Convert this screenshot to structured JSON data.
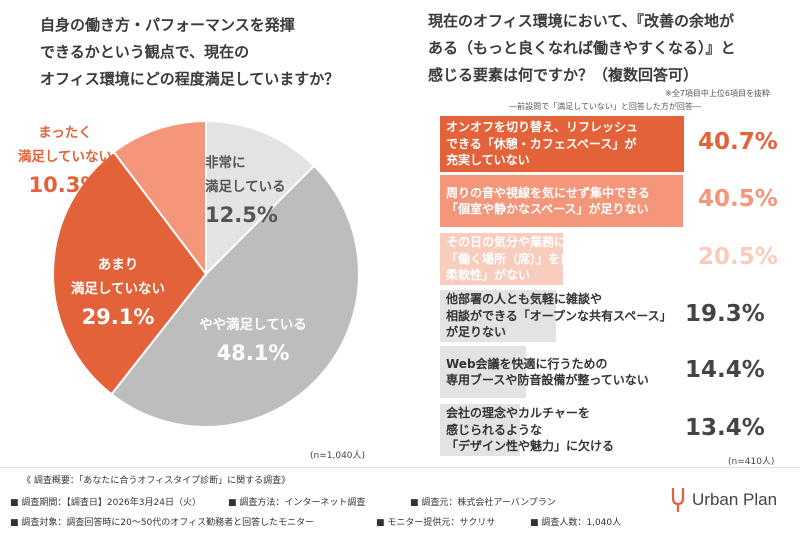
{
  "left_question": [
    "自身の働き方・パフォーマンスを発揮",
    "できるかという観点で、現在の",
    "オフィス環境にどの程度満足していますか？"
  ],
  "right_question": [
    "現在のオフィス環境において、『改善の余地が",
    "ある（もっと良くなれば働きやすくなる）』と",
    "感じる要素は何ですか？（複数回答可）"
  ],
  "right_note": "※全7項目中上位6項目を抜粋",
  "right_subtitle": "―前設問で「満足していない」と回答した方が回答―",
  "left_n": "(n=1,040人)",
  "right_n": "(n=410人)",
  "colors": {
    "dark_orange": "#e4623a",
    "mid_orange": "#f3967a",
    "light_orange": "#f8cdbd",
    "gray": "#bdbdbd",
    "light_gray": "#e3e3e3"
  },
  "chart_data": [
    {
      "type": "pie",
      "slices": [
        {
          "label": "非常に満足している",
          "value": 12.5,
          "display": "12.5%"
        },
        {
          "label": "やや満足している",
          "value": 48.1,
          "display": "48.1%"
        },
        {
          "label": "あまり満足していない",
          "value": 29.1,
          "display": "29.1%"
        },
        {
          "label": "まったく満足していない",
          "value": 10.3,
          "display": "10.3%"
        }
      ]
    },
    {
      "type": "bar",
      "orientation": "horizontal",
      "categories": [
        "オンオフを切り替え、リフレッシュできる「休憩・カフェスペース」が充実していない",
        "周りの音や視線を気にせず集中できる「個室や静かなスペース」が足りない",
        "その日の気分や業務に合わせて「働く場所（席）」を自由に選べる柔軟性」がない",
        "他部署の人とも気軽に雑談や相談ができる「オープンな共有スペース」が足りない",
        "Web会議を快適に行うための専用ブースや防音設備が整っていない",
        "会社の理念やカルチャーを感じられるような「デザイン性や魅力」に欠ける"
      ],
      "values": [
        40.7,
        40.5,
        20.5,
        19.3,
        14.4,
        13.4
      ],
      "display_values": [
        "40.7%",
        "40.5%",
        "20.5%",
        "19.3%",
        "14.4%",
        "13.4%"
      ]
    }
  ],
  "bar_labels": [
    [
      "オンオフを切り替え、リフレッシュ",
      "できる「休憩・カフェスペース」が",
      "充実していない"
    ],
    [
      "周りの音や視線を気にせず集中できる",
      "「個室や静かなスペース」が足りない"
    ],
    [
      "その日の気分や業務に合わせて",
      "「働く場所（席）」を自由に選べる",
      "柔軟性」がない"
    ],
    [
      "他部署の人とも気軽に雑談や",
      "相談ができる「オープンな共有スペース」",
      "が足りない"
    ],
    [
      "Web会議を快適に行うための",
      "専用ブースや防音設備が整っていない"
    ],
    [
      "会社の理念やカルチャーを",
      "感じられるような",
      "「デザイン性や魅力」に欠ける"
    ]
  ],
  "footer": {
    "line1": "《 調査概要：「あなたに合うオフィスタイプ診断」に関する調査》",
    "period": "■ 調査期間：【調査日】2026年3月24日（火）",
    "method": "■ 調査方法：インターネット調査",
    "source": "■ 調査元：株式会社アーバンプラン",
    "target": "■ 調査対象：調査回答時に20～50代のオフィス勤務者と回答したモニター",
    "provider": "■ モニター提供元：サクリサ",
    "count": "■ 調査人数：1,040人"
  },
  "logo_text": "Urban Plan"
}
